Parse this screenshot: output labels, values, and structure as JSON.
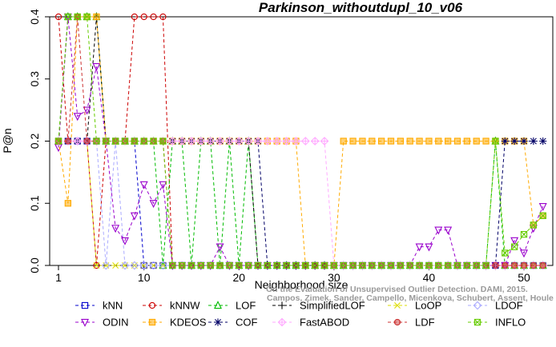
{
  "chart_data": {
    "type": "line",
    "title": "Parkinson_withoutdupl_10_v06",
    "xlabel": "Neighborhood size",
    "ylabel": "P@n",
    "xlim": [
      0.5,
      52.5
    ],
    "ylim": [
      0,
      0.4
    ],
    "x_ticks": [
      1,
      10,
      20,
      30,
      40,
      50
    ],
    "y_ticks": [
      0.0,
      0.1,
      0.2,
      0.3,
      0.4
    ],
    "grid": false,
    "legend_position": "bottom",
    "credit_lines": [
      "Campos, Zimek, Sander, Campello, Micenkova, Schubert, Assent, Houle"
    ],
    "credit_prefix": "On the Evaluation of Unsupervised Outlier Detection. DAMI, 2015.",
    "series": [
      {
        "name": "kNN",
        "color": "#0000cc",
        "marker": "square",
        "values": [
          0.2,
          0.2,
          0.2,
          0.2,
          0.2,
          0.2,
          0.2,
          0.2,
          0.2,
          0,
          0,
          0,
          0,
          0,
          0,
          0,
          0,
          0,
          0,
          0,
          0,
          0,
          0,
          0,
          0,
          0,
          0,
          0,
          0,
          0,
          0,
          0,
          0,
          0,
          0,
          0,
          0,
          0,
          0,
          0,
          0,
          0,
          0,
          0,
          0,
          0,
          0,
          0,
          0,
          0,
          0,
          0
        ]
      },
      {
        "name": "kNNW",
        "color": "#cc0000",
        "marker": "circle",
        "values": [
          0.4,
          0.2,
          0.2,
          0.2,
          0,
          0.2,
          0.2,
          0.2,
          0.4,
          0.4,
          0.4,
          0.4,
          0,
          0,
          0,
          0,
          0,
          0,
          0,
          0,
          0,
          0,
          0,
          0,
          0,
          0,
          0,
          0,
          0,
          0,
          0,
          0,
          0,
          0,
          0,
          0,
          0,
          0,
          0,
          0,
          0,
          0,
          0,
          0,
          0,
          0,
          0,
          0,
          0,
          0,
          0,
          0
        ]
      },
      {
        "name": "LOF",
        "color": "#00bb00",
        "marker": "triangle",
        "values": [
          0.2,
          0.4,
          0.4,
          0.4,
          0.4,
          0.2,
          0.2,
          0.2,
          0.2,
          0.2,
          0.2,
          0,
          0.2,
          0.2,
          0,
          0.2,
          0.2,
          0,
          0.2,
          0,
          0.2,
          0,
          0,
          0,
          0,
          0,
          0,
          0,
          0,
          0,
          0,
          0,
          0,
          0,
          0,
          0,
          0,
          0,
          0,
          0,
          0,
          0,
          0,
          0,
          0,
          0,
          0.2,
          0,
          0,
          0,
          0,
          0
        ]
      },
      {
        "name": "SimplifiedLOF",
        "color": "#000000",
        "marker": "plus",
        "values": [
          0.2,
          0.2,
          0.2,
          0.2,
          0.4,
          0.2,
          0.2,
          0.2,
          0.2,
          0.2,
          0.2,
          0.2,
          0.2,
          0.2,
          0.2,
          0.2,
          0.2,
          0.2,
          0.2,
          0.2,
          0.2,
          0,
          0,
          0,
          0,
          0,
          0,
          0,
          0,
          0,
          0,
          0,
          0,
          0,
          0,
          0,
          0,
          0,
          0,
          0,
          0,
          0,
          0,
          0,
          0,
          0,
          0,
          0,
          0,
          0,
          0,
          0
        ]
      },
      {
        "name": "LoOP",
        "color": "#dddd00",
        "marker": "x",
        "values": [
          0.2,
          0.2,
          0.2,
          0.2,
          0,
          0,
          0,
          0,
          0,
          0,
          0,
          0,
          0,
          0,
          0,
          0,
          0,
          0,
          0,
          0,
          0,
          0,
          0,
          0,
          0,
          0,
          0,
          0,
          0,
          0,
          0,
          0,
          0,
          0,
          0,
          0,
          0,
          0,
          0,
          0,
          0,
          0,
          0,
          0,
          0,
          0,
          0,
          0,
          0,
          0,
          0,
          0
        ]
      },
      {
        "name": "LDOF",
        "color": "#aaaaff",
        "marker": "diamond",
        "values": [
          0.2,
          0.2,
          0.2,
          0.2,
          0.2,
          0,
          0.2,
          0,
          0,
          0,
          0,
          0,
          0,
          0,
          0,
          0,
          0,
          0,
          0,
          0,
          0,
          0,
          0,
          0,
          0,
          0,
          0,
          0,
          0,
          0,
          0,
          0,
          0,
          0,
          0,
          0,
          0,
          0,
          0,
          0,
          0,
          0,
          0,
          0,
          0,
          0,
          0,
          0,
          0,
          0,
          0,
          0
        ]
      },
      {
        "name": "ODIN",
        "color": "#9900cc",
        "marker": "triangle-down",
        "values": [
          0.19,
          0.4,
          0.24,
          0.25,
          0.32,
          0.2,
          0.06,
          0.04,
          0.08,
          0.13,
          0.1,
          0.13,
          0,
          0,
          0,
          0,
          0,
          0.03,
          0,
          0,
          0,
          0,
          0,
          0,
          0,
          0,
          0,
          0,
          0,
          0,
          0,
          0,
          0,
          0,
          0,
          0,
          0,
          0,
          0.03,
          0.03,
          0.057,
          0.057,
          0,
          0,
          0,
          0,
          0,
          0,
          0.04,
          0.02,
          0.06,
          0.095
        ]
      },
      {
        "name": "KDEOS",
        "color": "#ffaa00",
        "marker": "square-filled",
        "values": [
          0.2,
          0.1,
          0.4,
          0.4,
          0.4,
          0.2,
          0.2,
          0.2,
          0.2,
          0.2,
          0.2,
          0.2,
          0.2,
          0.2,
          0.2,
          0.2,
          0.2,
          0.2,
          0.2,
          0.2,
          0.2,
          0.2,
          0.2,
          0.2,
          0.2,
          0.2,
          0,
          0,
          0,
          0,
          0.2,
          0.2,
          0.2,
          0.2,
          0.2,
          0.2,
          0.2,
          0.2,
          0.2,
          0.2,
          0.2,
          0.2,
          0.2,
          0.2,
          0.2,
          0.2,
          0.2,
          0.2,
          0.2,
          0.2,
          0.065,
          0.08
        ]
      },
      {
        "name": "COF",
        "color": "#000066",
        "marker": "asterisk",
        "values": [
          0.2,
          0.2,
          0.2,
          0.2,
          0.2,
          0.2,
          0.2,
          0.2,
          0.2,
          0.2,
          0.2,
          0.2,
          0.2,
          0.2,
          0.2,
          0.2,
          0.2,
          0.2,
          0.2,
          0.2,
          0.2,
          0.2,
          0,
          0,
          0,
          0,
          0,
          0,
          0,
          0,
          0,
          0,
          0,
          0,
          0,
          0,
          0,
          0,
          0,
          0,
          0,
          0,
          0,
          0,
          0,
          0,
          0,
          0.2,
          0.2,
          0.2,
          0.2,
          0.2
        ]
      },
      {
        "name": "FastABOD",
        "color": "#ffaaff",
        "marker": "diamond-plus",
        "values": [
          0.2,
          0.2,
          0.2,
          0.2,
          0.2,
          0.2,
          0.2,
          0.2,
          0.2,
          0.2,
          0.2,
          0.2,
          0.2,
          0.2,
          0.2,
          0.2,
          0.2,
          0.2,
          0.2,
          0.2,
          0.2,
          0.2,
          0.2,
          0.2,
          0.2,
          0.2,
          0.2,
          0.2,
          0.2,
          0,
          0,
          0,
          0,
          0,
          0,
          0,
          0,
          0,
          0,
          0,
          0,
          0,
          0,
          0,
          0,
          0,
          0,
          0,
          0,
          0,
          0,
          0
        ]
      },
      {
        "name": "LDF",
        "color": "#cc3333",
        "marker": "circle-filled",
        "values": [
          0.2,
          0.2,
          0.4,
          0.2,
          0.2,
          0.2,
          0.2,
          0.2,
          0.2,
          0.2,
          0.2,
          0.2,
          0,
          0,
          0,
          0,
          0,
          0,
          0,
          0,
          0,
          0,
          0,
          0,
          0,
          0,
          0,
          0,
          0,
          0,
          0,
          0,
          0,
          0,
          0,
          0,
          0,
          0,
          0,
          0,
          0,
          0,
          0,
          0,
          0,
          0,
          0,
          0,
          0,
          0,
          0,
          0
        ]
      },
      {
        "name": "INFLO",
        "color": "#66cc00",
        "marker": "square-x",
        "values": [
          0.2,
          0.4,
          0.4,
          0.4,
          0.2,
          0.2,
          0.2,
          0.2,
          0.2,
          0.2,
          0.2,
          0.2,
          0,
          0,
          0,
          0,
          0,
          0,
          0,
          0,
          0,
          0,
          0,
          0,
          0,
          0,
          0,
          0,
          0,
          0,
          0,
          0,
          0,
          0,
          0,
          0,
          0,
          0,
          0,
          0,
          0,
          0,
          0,
          0,
          0,
          0,
          0.2,
          0.02,
          0.03,
          0.05,
          0.065,
          0.08
        ]
      }
    ]
  }
}
